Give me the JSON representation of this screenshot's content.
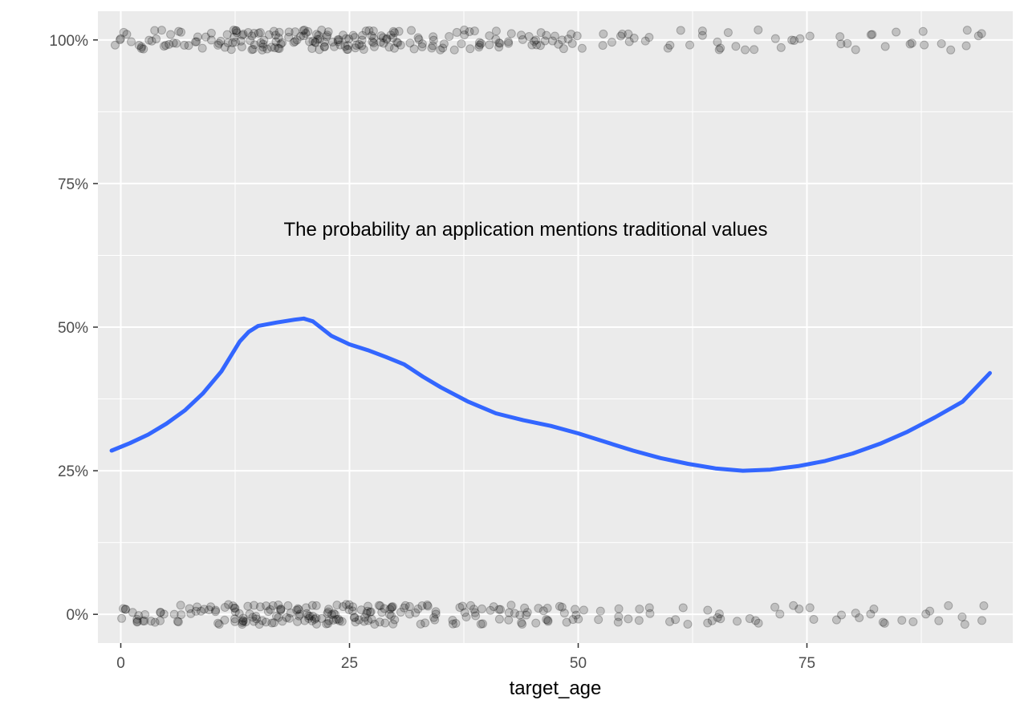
{
  "chart_data": {
    "type": "scatter",
    "xlabel": "target_age",
    "ylabel": "",
    "xlim": [
      -2.5,
      97.5
    ],
    "ylim": [
      -0.05,
      1.05
    ],
    "x_ticks": [
      0,
      25,
      50,
      75
    ],
    "x_tick_labels": [
      "0",
      "25",
      "50",
      "75"
    ],
    "y_ticks": [
      0,
      0.25,
      0.5,
      0.75,
      1.0
    ],
    "y_tick_labels": [
      "0%",
      "25%",
      "50%",
      "75%",
      "100%"
    ],
    "grid": true,
    "annotation": "The probability an application mentions traditional values",
    "point_groups": [
      {
        "y": 1,
        "ages": [
          0,
          1,
          2,
          3,
          4,
          5,
          6,
          7,
          8,
          9,
          10,
          11,
          12,
          13,
          14,
          15,
          16,
          17,
          18,
          19,
          20,
          21,
          22,
          23,
          24,
          25,
          26,
          27,
          28,
          29,
          30,
          31,
          32,
          33,
          34,
          35,
          36,
          37,
          38,
          39,
          40,
          41,
          42,
          43,
          44,
          45,
          46,
          47,
          48,
          49,
          50,
          52,
          54,
          55,
          56,
          58,
          60,
          62,
          64,
          65,
          66,
          68,
          70,
          72,
          74,
          75,
          78,
          80,
          82,
          84,
          86,
          88,
          90,
          92,
          94
        ]
      },
      {
        "y": 0,
        "ages": [
          0,
          1,
          2,
          3,
          4,
          5,
          6,
          7,
          8,
          9,
          10,
          11,
          12,
          13,
          14,
          15,
          16,
          17,
          18,
          19,
          20,
          21,
          22,
          23,
          24,
          25,
          26,
          27,
          28,
          29,
          30,
          31,
          32,
          33,
          34,
          35,
          36,
          37,
          38,
          39,
          40,
          41,
          42,
          43,
          44,
          45,
          46,
          47,
          48,
          49,
          50,
          52,
          54,
          55,
          56,
          58,
          60,
          62,
          64,
          65,
          66,
          68,
          70,
          72,
          74,
          75,
          78,
          80,
          82,
          84,
          86,
          88,
          90,
          92,
          94
        ]
      }
    ],
    "smooth_line": {
      "color": "#3366FF",
      "x": [
        -1,
        1,
        3,
        5,
        7,
        9,
        11,
        13,
        14,
        15,
        17,
        19,
        20,
        21,
        23,
        25,
        27,
        29,
        31,
        33,
        35,
        38,
        41,
        44,
        47,
        50,
        53,
        56,
        59,
        62,
        65,
        68,
        71,
        74,
        77,
        80,
        83,
        86,
        89,
        92,
        95
      ],
      "y": [
        0.285,
        0.298,
        0.313,
        0.332,
        0.355,
        0.385,
        0.423,
        0.475,
        0.492,
        0.502,
        0.508,
        0.513,
        0.515,
        0.51,
        0.485,
        0.47,
        0.46,
        0.448,
        0.435,
        0.414,
        0.395,
        0.37,
        0.35,
        0.338,
        0.328,
        0.315,
        0.3,
        0.285,
        0.272,
        0.262,
        0.254,
        0.25,
        0.252,
        0.258,
        0.267,
        0.28,
        0.297,
        0.318,
        0.343,
        0.37,
        0.42
      ]
    }
  }
}
